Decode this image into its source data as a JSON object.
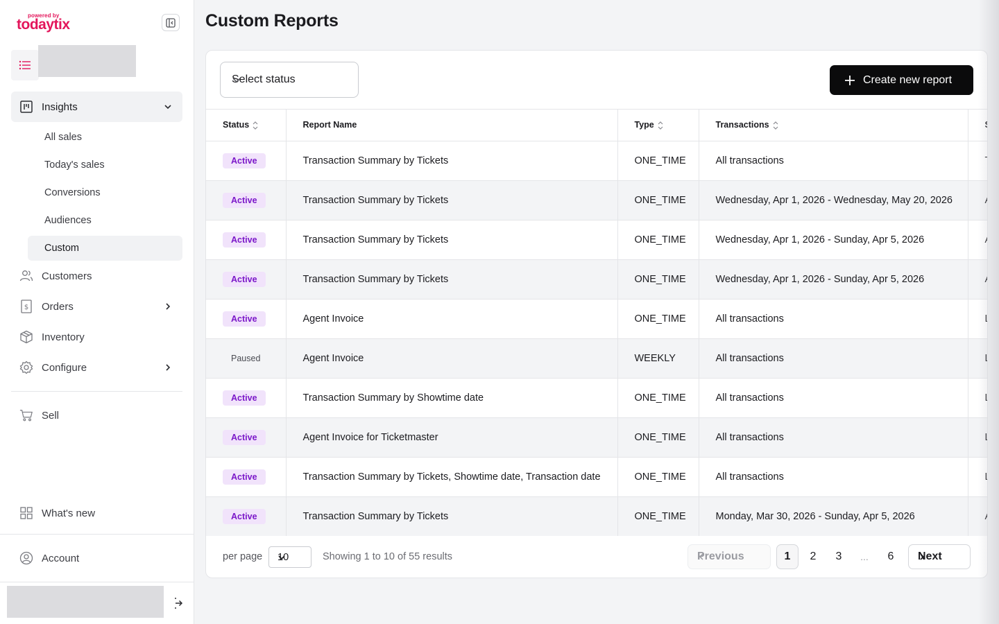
{
  "brand": {
    "powered_by": "powered by",
    "name": "todaytix"
  },
  "sidebar": {
    "insights": {
      "label": "Insights",
      "items": [
        {
          "label": "All sales"
        },
        {
          "label": "Today's sales"
        },
        {
          "label": "Conversions"
        },
        {
          "label": "Audiences"
        },
        {
          "label": "Custom"
        }
      ]
    },
    "customers": "Customers",
    "orders": "Orders",
    "inventory": "Inventory",
    "configure": "Configure",
    "sell": "Sell",
    "whats_new": "What's new",
    "account": "Account"
  },
  "page": {
    "title": "Custom Reports"
  },
  "filters": {
    "status_placeholder": "Select status",
    "create_label": "Create new report"
  },
  "table": {
    "headers": {
      "status": "Status",
      "name": "Report Name",
      "type": "Type",
      "transactions": "Transactions",
      "next": "S"
    },
    "rows": [
      {
        "status": "Active",
        "name": "Transaction Summary by Tickets",
        "type": "ONE_TIME",
        "transactions": "All transactions",
        "next": "T"
      },
      {
        "status": "Active",
        "name": "Transaction Summary by Tickets",
        "type": "ONE_TIME",
        "transactions": "Wednesday, Apr 1, 2026 - Wednesday, May 20, 2026",
        "next": "A"
      },
      {
        "status": "Active",
        "name": "Transaction Summary by Tickets",
        "type": "ONE_TIME",
        "transactions": "Wednesday, Apr 1, 2026 - Sunday, Apr 5, 2026",
        "next": "A"
      },
      {
        "status": "Active",
        "name": "Transaction Summary by Tickets",
        "type": "ONE_TIME",
        "transactions": "Wednesday, Apr 1, 2026 - Sunday, Apr 5, 2026",
        "next": "A"
      },
      {
        "status": "Active",
        "name": "Agent Invoice",
        "type": "ONE_TIME",
        "transactions": "All transactions",
        "next": "L"
      },
      {
        "status": "Paused",
        "name": "Agent Invoice",
        "type": "WEEKLY",
        "transactions": "All transactions",
        "next": "L"
      },
      {
        "status": "Active",
        "name": "Transaction Summary by Showtime date",
        "type": "ONE_TIME",
        "transactions": "All transactions",
        "next": "L"
      },
      {
        "status": "Active",
        "name": "Agent Invoice for Ticketmaster",
        "type": "ONE_TIME",
        "transactions": "All transactions",
        "next": "L"
      },
      {
        "status": "Active",
        "name": "Transaction Summary by Tickets, Showtime date, Transaction date",
        "type": "ONE_TIME",
        "transactions": "All transactions",
        "next": "L"
      },
      {
        "status": "Active",
        "name": "Transaction Summary by Tickets",
        "type": "ONE_TIME",
        "transactions": "Monday, Mar 30, 2026 - Sunday, Apr 5, 2026",
        "next": "A"
      }
    ]
  },
  "pagination": {
    "per_page_label": "per page",
    "per_page_value": "10",
    "showing": "Showing 1 to 10 of 55 results",
    "previous": "Previous",
    "next": "Next",
    "pages": [
      "1",
      "2",
      "3",
      "6"
    ],
    "ellipsis": "...",
    "current": "1"
  },
  "colors": {
    "brand": "#e3165b",
    "badge_active_bg": "#f1e3fb",
    "badge_active_text": "#7b17c9",
    "primary_button": "#0b0b0c"
  }
}
